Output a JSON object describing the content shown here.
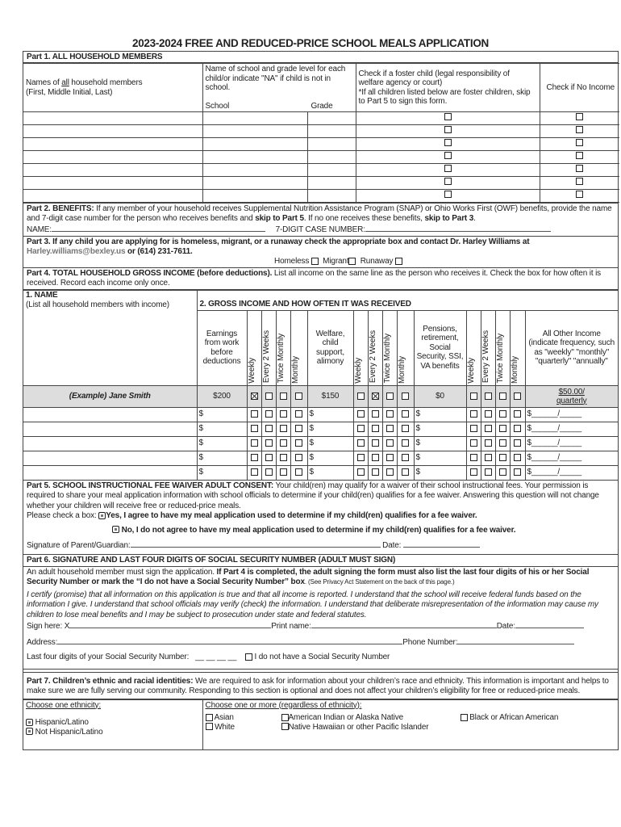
{
  "title": "2023-2024 FREE AND REDUCED-PRICE SCHOOL MEALS APPLICATION",
  "part1": {
    "heading": "Part 1. ALL HOUSEHOLD MEMBERS",
    "col_names_pre": "Names of ",
    "col_names_u": "all",
    "col_names_post": " household members",
    "col_names_sub": "(First, Middle Initial, Last)",
    "col_school_desc": "Name of school and grade level for each child/or indicate \"NA\" if child is not in school.",
    "col_school": "School",
    "col_grade": "Grade",
    "col_foster": "Check if a foster child (legal responsibility of welfare agency or court)",
    "col_foster_note": "*If all children listed below are foster children, skip to Part 5 to sign this form.",
    "col_noincome": "Check if No Income",
    "row_count": 7
  },
  "part2": {
    "heading": "Part 2. BENEFITS:",
    "text1": " If any member of your household receives Supplemental Nutrition Assistance Program (SNAP) or Ohio Works First (OWF) benefits, provide the name and 7-digit case number for the person who receives benefits and ",
    "skip5": "skip to Part 5",
    "text2": ". If no one receives these benefits, ",
    "skip3": "skip to Part 3",
    "text3": ".",
    "name_label": "NAME:",
    "case_label": "7-DIGIT CASE NUMBER:"
  },
  "part3": {
    "heading": "Part 3.  If any child you are applying for is homeless, migrant, or a runaway check the appropriate box and contact Dr. Harley Williams at ",
    "email": "Harley.williams@bexley.us",
    "phone": " or (614) 231-7611.",
    "options": [
      "Homeless",
      "Migrant",
      "Runaway"
    ]
  },
  "part4": {
    "heading": "Part 4. TOTAL HOUSEHOLD GROSS INCOME (before deductions).",
    "text": " List all income on the same line as the person who receives it. Check the box for how often it is received. Record each income only once.",
    "name_heading": "1. NAME",
    "name_sub": "(List all household members with income)",
    "income_heading": "2. GROSS INCOME AND HOW OFTEN IT WAS RECEIVED",
    "col_earnings": "Earnings from work before deductions",
    "col_welfare": "Welfare, child support, alimony",
    "col_pensions": "Pensions, retirement, Social Security, SSI, VA benefits",
    "col_other": "All Other Income (indicate frequency, such as \"weekly\" \"monthly\" \"quarterly\" \"annually\"",
    "frequencies": [
      "Weekly",
      "Every 2 Weeks",
      "Twice Monthly",
      "Monthly"
    ],
    "example": {
      "name": "(Example) Jane Smith",
      "earnings": "$200",
      "earnings_freq": 0,
      "welfare": "$150",
      "welfare_freq": 1,
      "pensions": "$0",
      "other": "$50.00/",
      "other_freq": "quarterly"
    },
    "dollar": "$",
    "other_blank": "$______/_____",
    "row_count": 5
  },
  "part5": {
    "heading": "Part 5. SCHOOL INSTRUCTIONAL FEE WAIVER ADULT CONSENT:",
    "text": " Your child(ren) may qualify for a waiver of their school instructional fees. Your permission is required to share your meal application information with school officials to determine if your child(ren) qualifies for a fee waiver. Answering this question will not change whether your children will receive free or reduced-price meals.",
    "check_label": "Please check a box: ",
    "yes": "Yes, I agree to have my meal application used to determine if my child(ren) qualifies for a fee waiver.",
    "no": "No, I do not agree to have my meal application used to determine if my child(ren) qualifies for a fee waiver.",
    "sig_label": "Signature of Parent/Guardian:",
    "date_label": "Date:"
  },
  "part6": {
    "heading": "Part 6. SIGNATURE AND LAST FOUR DIGITS OF SOCIAL SECURITY NUMBER (ADULT MUST SIGN)",
    "intro": "An adult household member must sign the application. ",
    "intro_bold": "If Part 4 is completed, the adult signing the form must also list the last four digits of his or her Social Security Number or mark the “I do not have a Social Security Number” box",
    "intro_small": ". (See Privacy Act Statement on the back of this page.)",
    "certify": "I certify (promise) that all information on this application is true and that all income is reported. I understand that the school will receive federal funds based on the information I give. I understand that school officials may verify (check) the information. I understand that deliberate misrepresentation of the information may cause my children to lose meal benefits and I may be subject to prosecution under state and federal statutes.",
    "sign_label": "Sign here: X",
    "print_label": "Print name:",
    "date_label": "Date:",
    "address_label": "Address:",
    "phone_label": "Phone Number:",
    "ssn_label": "Last four digits of your Social Security Number:",
    "ssn_blank": "__ __ __ __",
    "no_ssn": "I do not have a Social Security Number"
  },
  "part7": {
    "heading": "Part 7. Children’s ethnic and racial identities:",
    "text": " We are required to ask for information about your children’s race and ethnicity. This information is important and helps to make sure we are fully serving our community. Responding to this section is optional and does not affect your children’s eligibility for free or reduced-price meals.",
    "ethnicity_label": "Choose one ethnicity:",
    "ethnicities": [
      "Hispanic/Latino",
      "Not Hispanic/Latino"
    ],
    "race_label": "Choose one or more (regardless of ethnicity):",
    "races": [
      "Asian",
      "White",
      "American Indian or Alaska Native",
      "Native Hawaiian or other Pacific Islander",
      "Black or African American"
    ]
  }
}
